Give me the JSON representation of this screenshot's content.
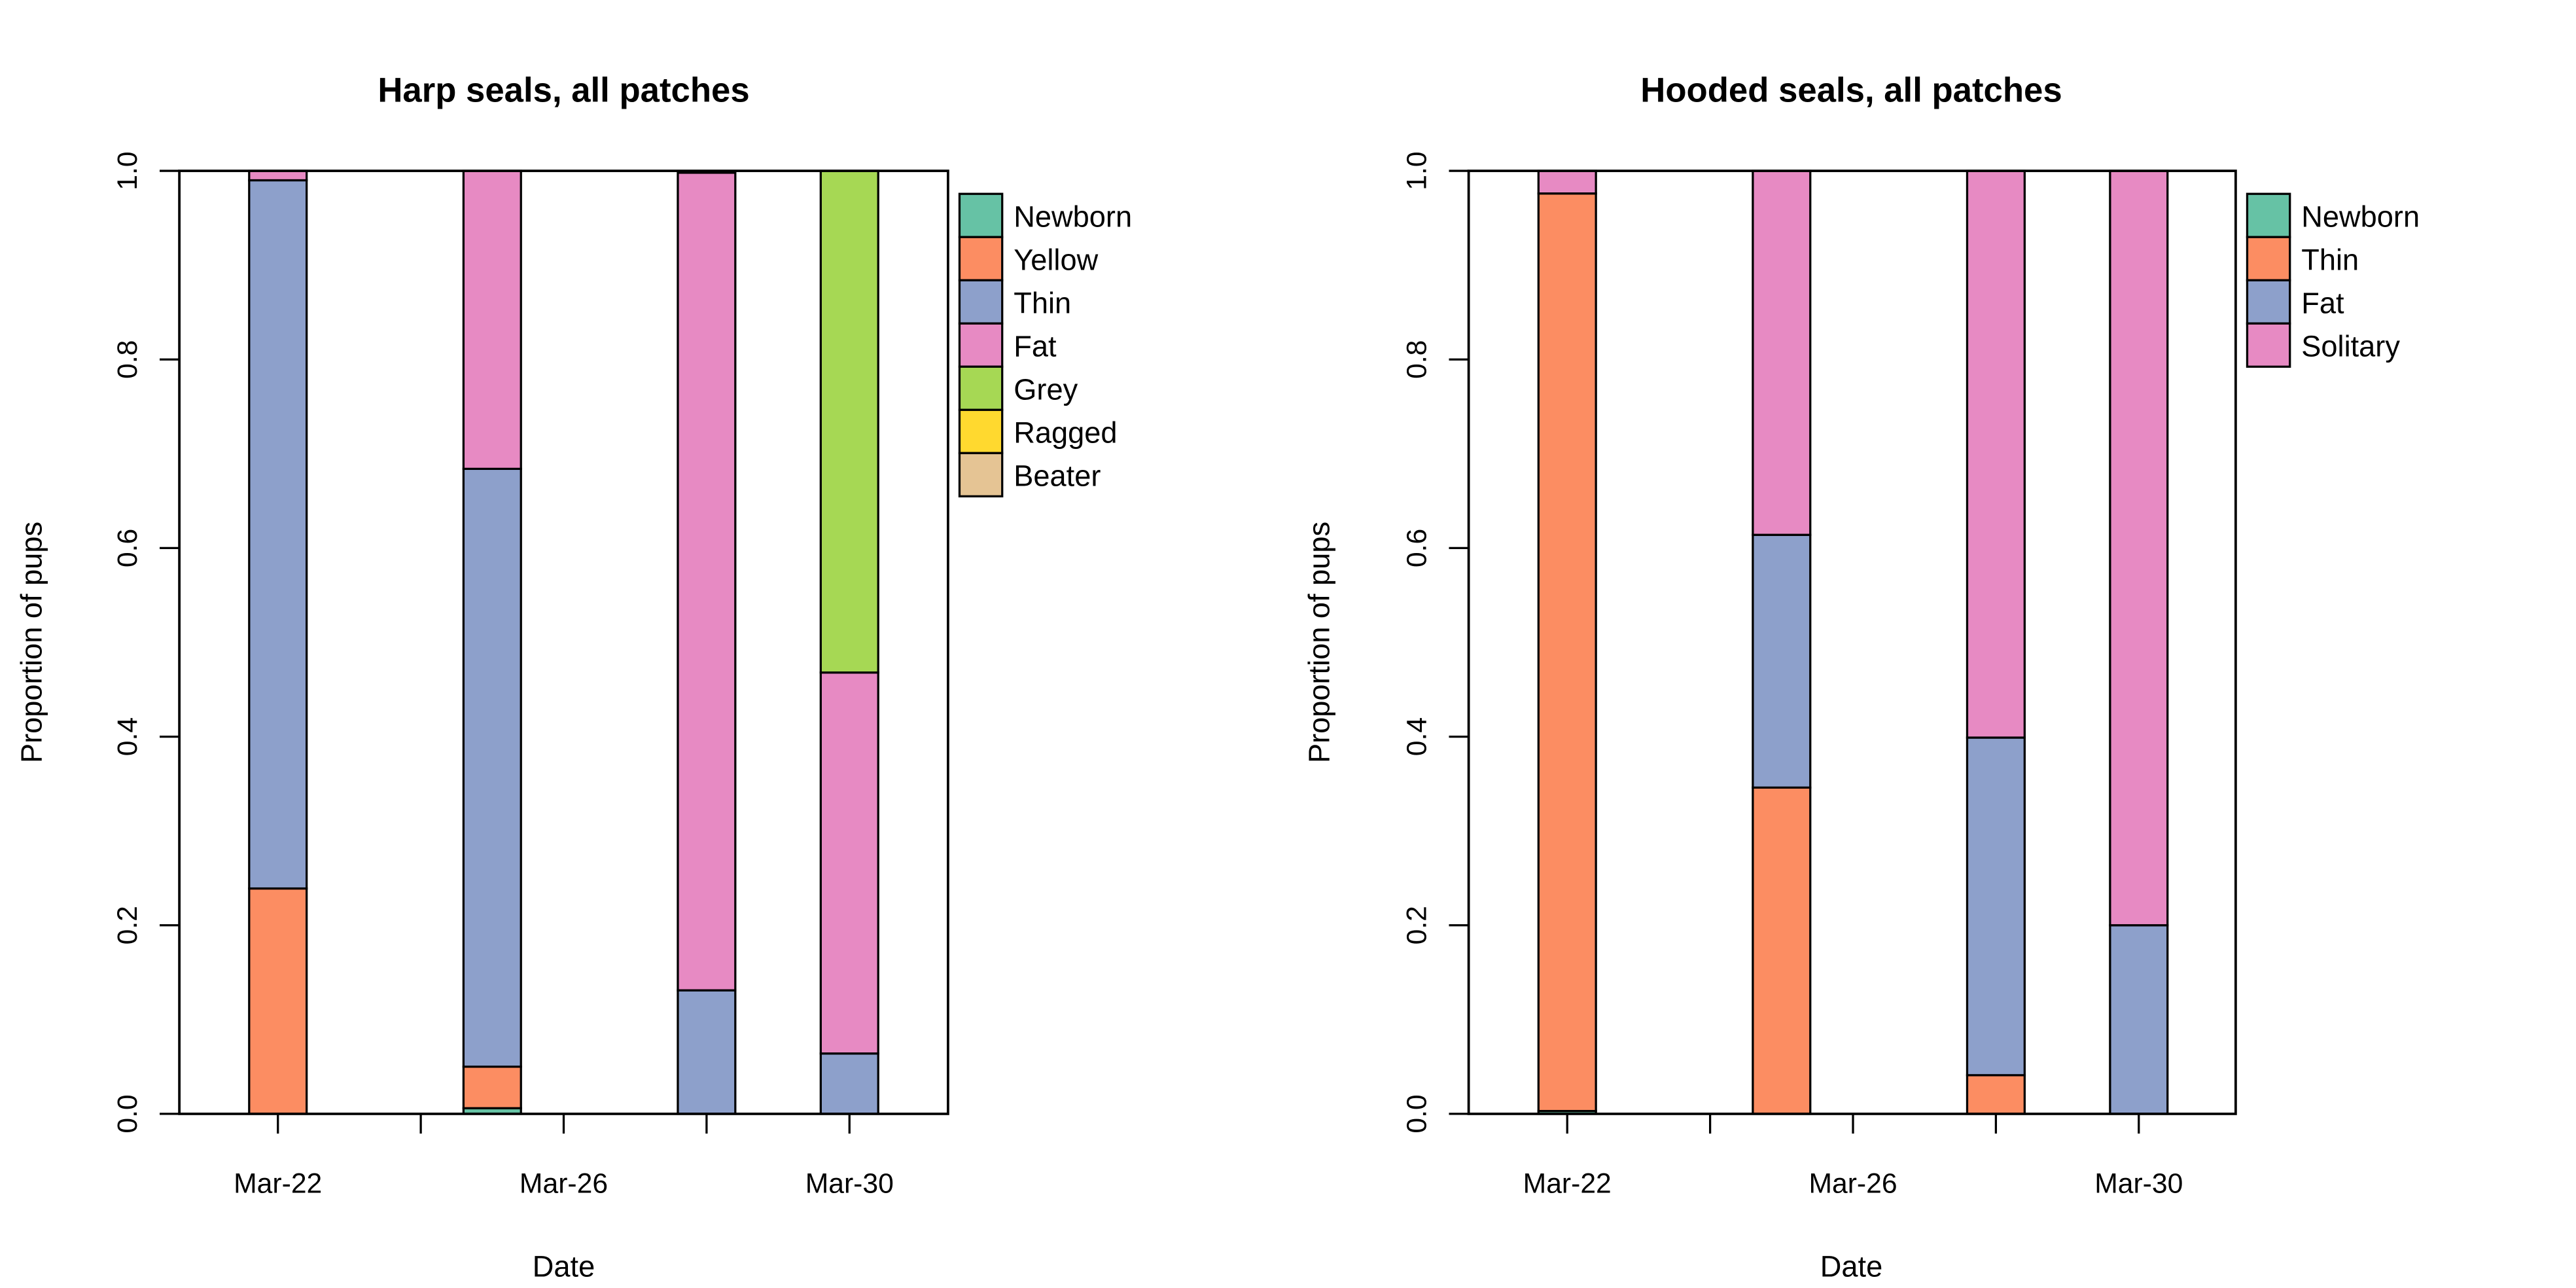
{
  "chart_data": [
    {
      "type": "bar",
      "stacked": true,
      "title": "Harp seals, all patches",
      "xlabel": "Date",
      "ylabel": "Proportion of pups",
      "ylim": [
        0,
        1
      ],
      "yticks": [
        "0.0",
        "0.2",
        "0.4",
        "0.6",
        "0.8",
        "1.0"
      ],
      "xticks": [
        "Mar-22",
        "Mar-24",
        "Mar-26",
        "Mar-28",
        "Mar-30"
      ],
      "xtick_labels": [
        "Mar-22",
        "",
        "Mar-26",
        "",
        "Mar-30"
      ],
      "categories": [
        "Mar-22",
        "Mar-25",
        "Mar-28",
        "Mar-30"
      ],
      "legend_position": "right",
      "series": [
        {
          "name": "Newborn",
          "color": "#66C2A5",
          "values": [
            0.0,
            0.006,
            0.0,
            0.0
          ]
        },
        {
          "name": "Yellow",
          "color": "#FC8D62",
          "values": [
            0.239,
            0.044,
            0.0,
            0.0
          ]
        },
        {
          "name": "Thin",
          "color": "#8DA0CB",
          "values": [
            0.751,
            0.634,
            0.131,
            0.064
          ]
        },
        {
          "name": "Fat",
          "color": "#E78AC3",
          "values": [
            0.01,
            0.316,
            0.867,
            0.404
          ]
        },
        {
          "name": "Grey",
          "color": "#A6D854",
          "values": [
            0.0,
            0.0,
            0.0,
            0.532
          ]
        },
        {
          "name": "Ragged",
          "color": "#FFD92F",
          "values": [
            0.0,
            0.0,
            0.0,
            0.0
          ]
        },
        {
          "name": "Beater",
          "color": "#E5C494",
          "values": [
            0.0,
            0.0,
            0.0,
            0.0
          ]
        }
      ]
    },
    {
      "type": "bar",
      "stacked": true,
      "title": "Hooded seals, all patches",
      "xlabel": "Date",
      "ylabel": "Proportion of pups",
      "ylim": [
        0,
        1
      ],
      "yticks": [
        "0.0",
        "0.2",
        "0.4",
        "0.6",
        "0.8",
        "1.0"
      ],
      "xticks": [
        "Mar-22",
        "Mar-24",
        "Mar-26",
        "Mar-28",
        "Mar-30"
      ],
      "xtick_labels": [
        "Mar-22",
        "",
        "Mar-26",
        "",
        "Mar-30"
      ],
      "categories": [
        "Mar-22",
        "Mar-25",
        "Mar-28",
        "Mar-30"
      ],
      "legend_position": "right",
      "series": [
        {
          "name": "Newborn",
          "color": "#66C2A5",
          "values": [
            0.003,
            0.0,
            0.0,
            0.0
          ]
        },
        {
          "name": "Thin",
          "color": "#FC8D62",
          "values": [
            0.973,
            0.346,
            0.041,
            0.0
          ]
        },
        {
          "name": "Fat",
          "color": "#8DA0CB",
          "values": [
            0.0,
            0.268,
            0.358,
            0.2
          ]
        },
        {
          "name": "Solitary",
          "color": "#E78AC3",
          "values": [
            0.024,
            0.386,
            0.601,
            0.8
          ]
        }
      ]
    }
  ]
}
